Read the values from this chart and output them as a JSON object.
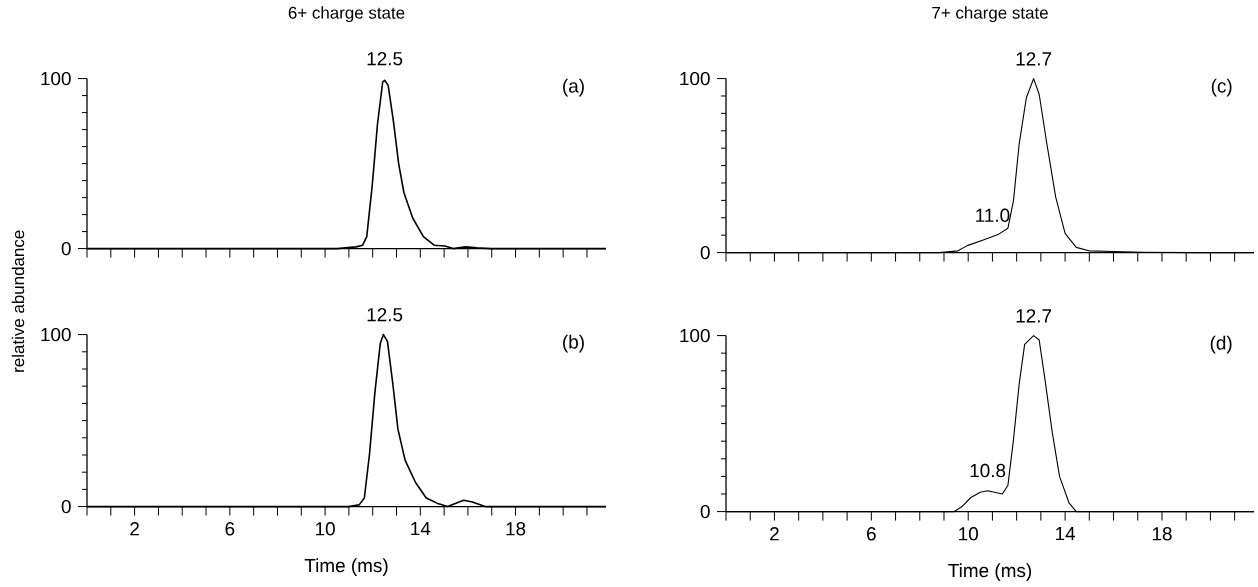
{
  "chart_data": [
    {
      "type": "line",
      "title": "6+ charge state",
      "ylabel": "relative abundance",
      "xlim": [
        0,
        21.8
      ],
      "ylim": [
        0,
        100
      ],
      "yticks": [
        0,
        100
      ],
      "xticks": [
        {
          "value": 0,
          "label": null
        },
        {
          "value": 2,
          "label": null
        },
        {
          "value": 6,
          "label": null
        },
        {
          "value": 10,
          "label": null
        },
        {
          "value": 14,
          "label": null
        },
        {
          "value": 18,
          "label": null
        }
      ],
      "tick_labels": "y",
      "series": [
        {
          "color": "#000000",
          "x": [
            0,
            10.5,
            11.3,
            11.58,
            11.75,
            11.98,
            12.2,
            12.42,
            12.5,
            12.65,
            12.87,
            13.09,
            13.31,
            13.68,
            14.13,
            14.58,
            15.03,
            15.38,
            15.91,
            16.37,
            16.98,
            21.8
          ],
          "values": [
            0,
            0,
            1,
            2,
            7,
            37,
            73,
            98,
            99,
            96,
            75,
            50,
            33,
            18,
            7,
            2,
            1.5,
            0,
            1,
            0.4,
            0,
            0
          ]
        }
      ],
      "annotations": [
        {
          "text": "12.5",
          "x": 12.5,
          "y": 100
        },
        "(a)"
      ]
    },
    {
      "type": "line",
      "xlabel": "Time (ms)",
      "xlim": [
        0,
        21.8
      ],
      "ylim": [
        0,
        100
      ],
      "yticks": [
        0,
        100
      ],
      "xticks": [
        {
          "value": 0,
          "label": null
        },
        2,
        6,
        10,
        14,
        18
      ],
      "series": [
        {
          "color": "#000000",
          "x": [
            0,
            10.98,
            11.43,
            11.65,
            11.87,
            12.09,
            12.32,
            12.45,
            12.62,
            12.84,
            13.06,
            13.36,
            13.8,
            14.25,
            14.7,
            15.15,
            15.44,
            15.82,
            16.19,
            16.72,
            21.8
          ],
          "values": [
            0,
            0,
            1,
            5,
            31,
            66,
            95,
            100,
            96,
            72,
            45,
            27,
            14,
            5,
            2,
            0,
            1.7,
            3.7,
            2.7,
            0,
            0
          ]
        }
      ],
      "annotations": [
        {
          "text": "12.5",
          "x": 12.5,
          "y": 100
        },
        "(b)"
      ]
    },
    {
      "type": "line",
      "title": "7+ charge state",
      "xlim": [
        0,
        21.8
      ],
      "ylim": [
        0,
        100
      ],
      "yticks": [
        0,
        100
      ],
      "xticks": [
        {
          "value": 0,
          "label": null
        },
        {
          "value": 2,
          "label": null
        },
        {
          "value": 6,
          "label": null
        },
        {
          "value": 10,
          "label": null
        },
        {
          "value": 14,
          "label": null
        },
        {
          "value": 18,
          "label": null
        }
      ],
      "tick_labels": "y",
      "series": [
        {
          "color": "#000000",
          "x": [
            0,
            8.81,
            9.58,
            9.96,
            10.65,
            11.26,
            11.64,
            11.87,
            12.1,
            12.4,
            12.7,
            12.93,
            13.23,
            13.61,
            14.0,
            14.46,
            14.99,
            16.0,
            17.23,
            19.3,
            21.8
          ],
          "values": [
            0,
            0,
            1,
            4,
            7.4,
            10.6,
            14,
            30,
            62,
            89,
            100,
            91,
            64,
            32,
            11,
            3,
            1,
            0.6,
            0.2,
            0,
            0
          ]
        }
      ],
      "annotations": [
        {
          "text": "12.7",
          "x": 12.7,
          "y": 100
        },
        {
          "text": "11.0",
          "x": 11.0,
          "y": 10
        },
        "(c)"
      ]
    },
    {
      "type": "line",
      "xlabel": "Time (ms)",
      "xlim": [
        0,
        21.8
      ],
      "ylim": [
        0,
        100
      ],
      "yticks": [
        0,
        100
      ],
      "xticks": [
        {
          "value": 0,
          "label": null
        },
        2,
        6,
        10,
        14,
        18
      ],
      "series": [
        {
          "color": "#000000",
          "x": [
            0,
            9.42,
            9.73,
            10.11,
            10.5,
            10.8,
            11.18,
            11.41,
            11.64,
            11.87,
            12.1,
            12.33,
            12.7,
            12.93,
            13.16,
            13.47,
            13.77,
            14.16,
            14.46,
            21.8
          ],
          "values": [
            0,
            0,
            2.7,
            8,
            11,
            11.8,
            10.7,
            10,
            15,
            41,
            72,
            95,
            100,
            97.5,
            76,
            45,
            20,
            5,
            0,
            0
          ]
        }
      ],
      "annotations": [
        {
          "text": "12.7",
          "x": 12.7,
          "y": 100
        },
        {
          "text": "10.8",
          "x": 10.8,
          "y": 12
        },
        "(d)"
      ]
    }
  ]
}
